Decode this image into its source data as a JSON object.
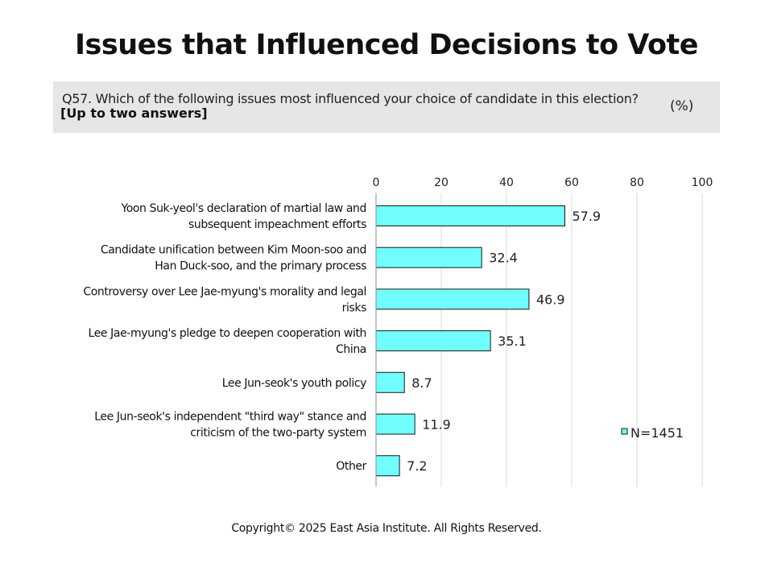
{
  "title": "Issues that Influenced Decisions to Vote",
  "question": "Q57. Which of the following issues most influenced your choice of candidate in this election?",
  "answers_note": "[Up to two answers]",
  "unit": "(%)",
  "footer": "Copyright© 2025 East Asia Institute. All Rights Reserved.",
  "colors": {
    "bar": "#6ffdfd",
    "bar_stroke": "#1a1a1a",
    "grid": "#d9d9d9",
    "question_bg": "#e6e6e6"
  },
  "chart_data": {
    "type": "bar",
    "orientation": "horizontal",
    "categories": [
      [
        "Yoon Suk-yeol's declaration of martial law and",
        "subsequent impeachment efforts"
      ],
      [
        "Candidate unification between Kim Moon-soo and",
        "Han Duck-soo, and the primary process"
      ],
      [
        "Controversy over Lee Jae-myung's morality and legal",
        "risks"
      ],
      [
        "Lee Jae-myung's pledge to deepen cooperation with",
        "China"
      ],
      [
        "Lee Jun-seok's youth policy"
      ],
      [
        "Lee Jun-seok's independent \"third way\" stance and",
        "criticism of the two-party system"
      ],
      [
        "Other"
      ]
    ],
    "series": [
      {
        "name": "N=1451",
        "values": [
          57.9,
          32.4,
          46.9,
          35.1,
          8.7,
          11.9,
          7.2
        ]
      }
    ],
    "value_labels": [
      "57.9",
      "32.4",
      "46.9",
      "35.1",
      "8.7",
      "11.9",
      "7.2"
    ],
    "xlim": [
      0,
      100
    ],
    "ticks": [
      0,
      20,
      40,
      60,
      80,
      100
    ],
    "grid": true,
    "legend": "bottom-right"
  }
}
